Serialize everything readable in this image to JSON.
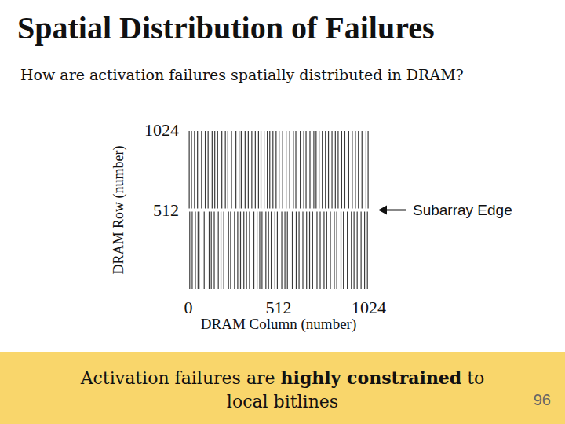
{
  "slide": {
    "title": "Spatial Distribution of Failures",
    "subtitle": "How are activation failures spatially distributed in DRAM?",
    "message": [
      {
        "text": "Activation failures are "
      },
      {
        "text": "highly constrained",
        "bold": true
      },
      {
        "text": " to local bitlines"
      }
    ],
    "page_number": 96
  },
  "chart_data": {
    "type": "segments",
    "x_label": "DRAM Column (number)",
    "y_label": "DRAM Row (number)",
    "xlim": [
      0,
      1024
    ],
    "xticks": [
      0,
      512,
      1024
    ],
    "ylim": [
      0,
      1024
    ],
    "yticks": [
      512,
      1024
    ],
    "grid": false,
    "color": "#3a3a3a",
    "subarrays": [
      {
        "rows": [
          0,
          512
        ],
        "columns": [
          8,
          22,
          40,
          55,
          61,
          90,
          118,
          130,
          147,
          170,
          185,
          201,
          228,
          240,
          262,
          280,
          296,
          315,
          330,
          347,
          372,
          390,
          405,
          418,
          440,
          455,
          470,
          491,
          505,
          530,
          548,
          562,
          590,
          612,
          628,
          650,
          671,
          688,
          705,
          730,
          748,
          770,
          785,
          806,
          828,
          842,
          866,
          880,
          902,
          925,
          940,
          958,
          980,
          1000,
          1016
        ]
      },
      {
        "rows": [
          512,
          1024
        ],
        "columns": [
          5,
          18,
          35,
          52,
          75,
          96,
          112,
          135,
          150,
          166,
          190,
          210,
          224,
          245,
          270,
          288,
          300,
          322,
          340,
          360,
          380,
          398,
          412,
          430,
          448,
          462,
          480,
          498,
          515,
          535,
          555,
          575,
          596,
          610,
          635,
          655,
          668,
          690,
          712,
          725,
          742,
          760,
          778,
          795,
          815,
          834,
          850,
          870,
          888,
          910,
          930,
          948,
          965,
          985,
          1008,
          1020
        ]
      }
    ],
    "annotations": [
      {
        "text": "Subarray Edge",
        "y": 512
      }
    ]
  }
}
